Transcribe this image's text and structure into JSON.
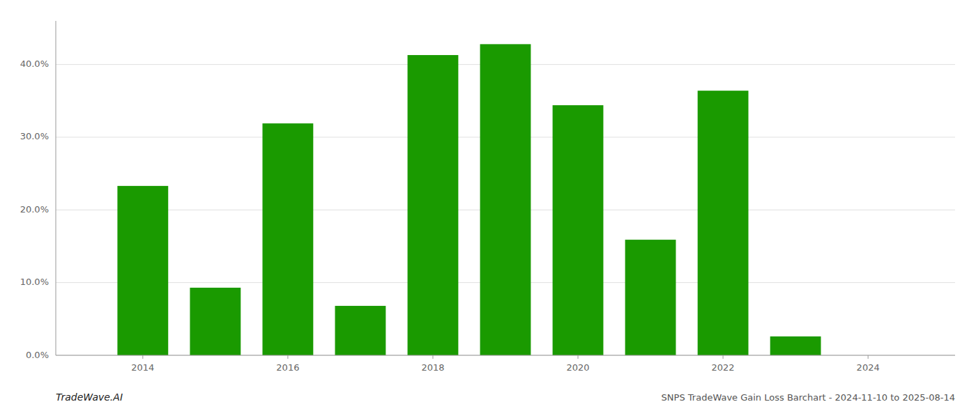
{
  "chart_data": {
    "type": "bar",
    "title": "SNPS TradeWave Gain Loss Barchart - 2024-11-10 to 2025-08-14",
    "annotations": [
      "TradeWave.AI"
    ],
    "x": [
      2014,
      2015,
      2016,
      2017,
      2018,
      2019,
      2020,
      2021,
      2022,
      2023,
      2024
    ],
    "values": [
      0.233,
      0.093,
      0.319,
      0.068,
      0.413,
      0.428,
      0.344,
      0.159,
      0.364,
      0.026,
      0.0
    ],
    "color": "#1a9a00",
    "xlim": [
      2012.8,
      2025.2
    ],
    "xticks": [
      2014,
      2016,
      2018,
      2020,
      2022,
      2024
    ],
    "ylim": [
      0,
      0.46
    ],
    "yticks": [
      {
        "value": 0.0,
        "label": "0.0%"
      },
      {
        "value": 0.1,
        "label": "10.0%"
      },
      {
        "value": 0.2,
        "label": "20.0%"
      },
      {
        "value": 0.3,
        "label": "30.0%"
      },
      {
        "value": 0.4,
        "label": "40.0%"
      }
    ],
    "grid": true
  }
}
